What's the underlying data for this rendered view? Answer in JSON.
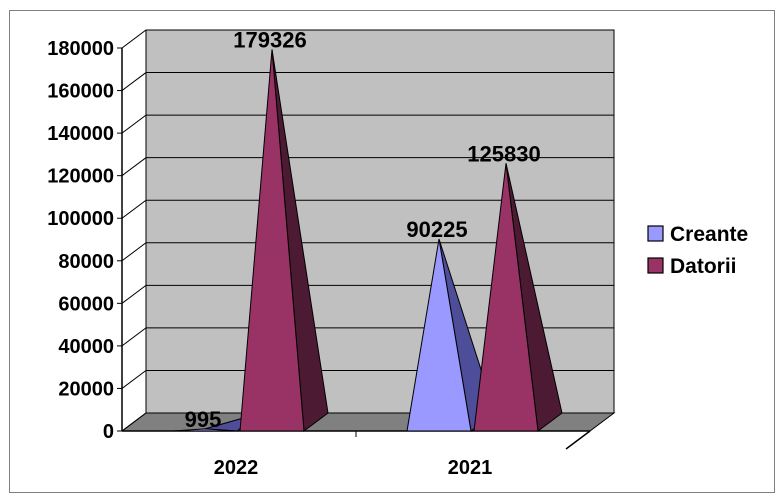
{
  "chart_data": {
    "type": "bar",
    "bar_shape": "3d-pyramid",
    "title": "",
    "xlabel": "",
    "ylabel": "",
    "categories": [
      "2022",
      "2021"
    ],
    "series": [
      {
        "name": "Creante",
        "values": [
          995,
          90225
        ],
        "color": "#9999FF",
        "side_color": "#4D4D99"
      },
      {
        "name": "Datorii",
        "values": [
          179326,
          125830
        ],
        "color": "#993366",
        "side_color": "#4D1A33"
      }
    ],
    "data_labels": [
      [
        "995",
        "90225"
      ],
      [
        "179326",
        "125830"
      ]
    ],
    "ylim": [
      0,
      180000
    ],
    "y_ticks": [
      "0",
      "20000",
      "40000",
      "60000",
      "80000",
      "100000",
      "120000",
      "140000",
      "160000",
      "180000"
    ],
    "grid": true,
    "legend_position": "right",
    "colors": {
      "wall": "#C0C0C0",
      "floor": "#808080",
      "grid": "#000000",
      "border": "#000000"
    }
  }
}
